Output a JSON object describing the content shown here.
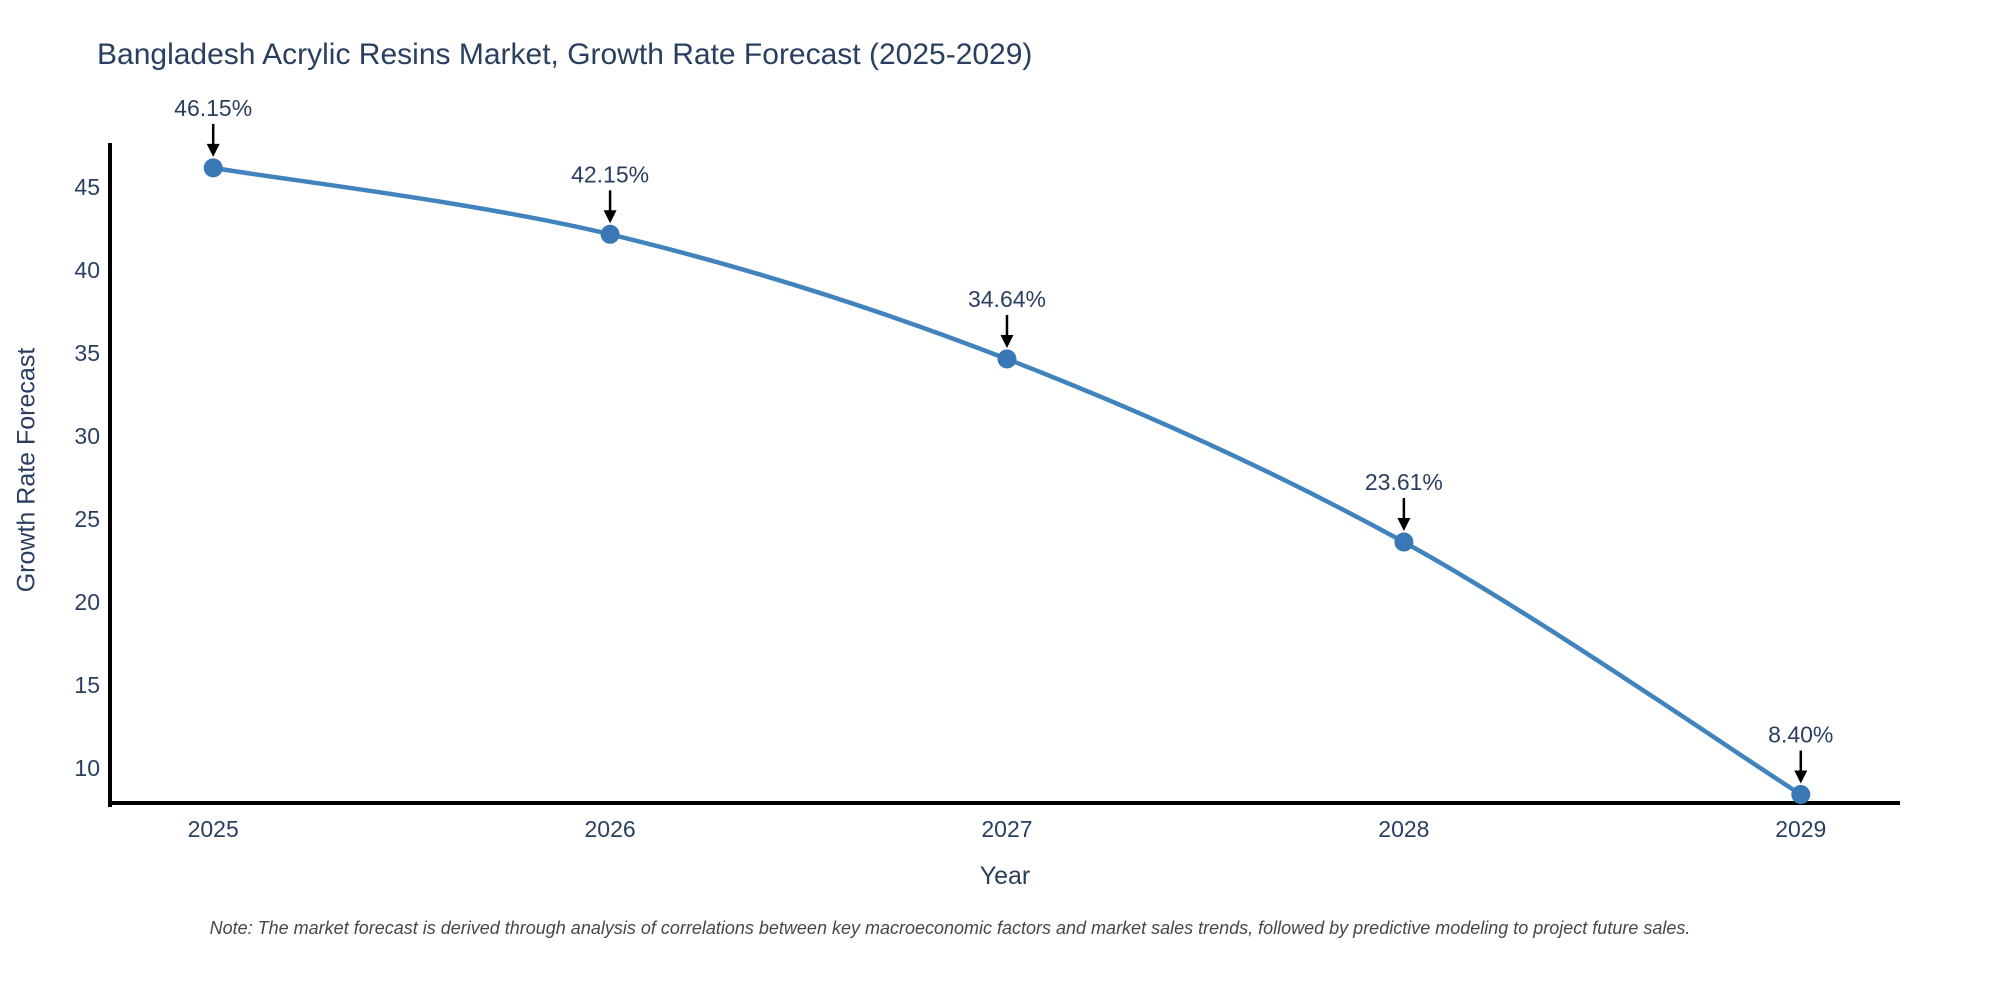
{
  "page": {
    "background": "#ffffff"
  },
  "chart_data": {
    "type": "line",
    "title": "Bangladesh Acrylic Resins Market, Growth Rate Forecast (2025-2029)",
    "xlabel": "Year",
    "ylabel": "Growth Rate Forecast",
    "x": [
      2025,
      2026,
      2027,
      2028,
      2029
    ],
    "series": [
      {
        "name": "Growth Rate Forecast",
        "values": [
          46.15,
          42.15,
          34.64,
          23.61,
          8.4
        ],
        "point_labels": [
          "46.15%",
          "42.15%",
          "34.64%",
          "23.61%",
          "8.40%"
        ]
      }
    ],
    "xticks": [
      2025,
      2026,
      2027,
      2028,
      2029
    ],
    "yticks": [
      10,
      15,
      20,
      25,
      30,
      35,
      40,
      45
    ],
    "xlim": [
      2024.74,
      2029.25
    ],
    "ylim": [
      7.89,
      47.65
    ],
    "grid": false,
    "legend": "none",
    "line_shape": "spline",
    "annotations": "value labels with downward black arrows above each point",
    "colors": {
      "line": "#4183bd",
      "marker": "#3a78b5",
      "axis": "#000000",
      "text": "#2a3f5f",
      "arrow": "#000000",
      "note_text": "#474747"
    }
  },
  "note": "Note: The market forecast is derived through analysis of correlations between key macroeconomic factors and market sales trends, followed by predictive modeling to project future sales."
}
